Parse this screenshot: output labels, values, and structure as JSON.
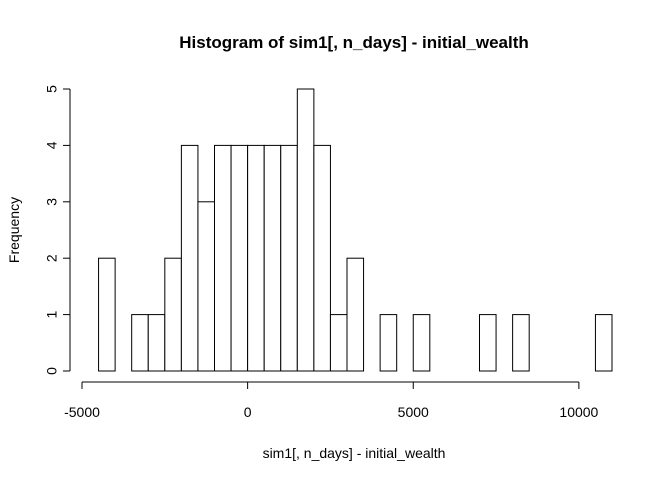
{
  "chart_data": {
    "type": "histogram",
    "title": "Histogram of sim1[, n_days] - initial_wealth",
    "xlabel": "sim1[, n_days] - initial_wealth",
    "ylabel": "Frequency",
    "xlim": [
      -5000,
      11000
    ],
    "ylim": [
      0,
      5
    ],
    "x_ticks": [
      -5000,
      0,
      5000,
      10000
    ],
    "y_ticks": [
      0,
      1,
      2,
      3,
      4,
      5
    ],
    "x_tick_labels": [
      "-5000",
      "0",
      "5000",
      "10000"
    ],
    "y_tick_labels": [
      "0",
      "1",
      "2",
      "3",
      "4",
      "5"
    ],
    "bin_width": 500,
    "bin_start": -4500,
    "counts": [
      2,
      0,
      1,
      1,
      2,
      4,
      3,
      4,
      4,
      4,
      4,
      4,
      5,
      4,
      1,
      2,
      0,
      1,
      0,
      1,
      0,
      0,
      0,
      1,
      0,
      1,
      0,
      0,
      0,
      0,
      1
    ],
    "bar_fill": "#ffffff",
    "bar_stroke": "#000000",
    "grid": false,
    "legend": "none"
  }
}
